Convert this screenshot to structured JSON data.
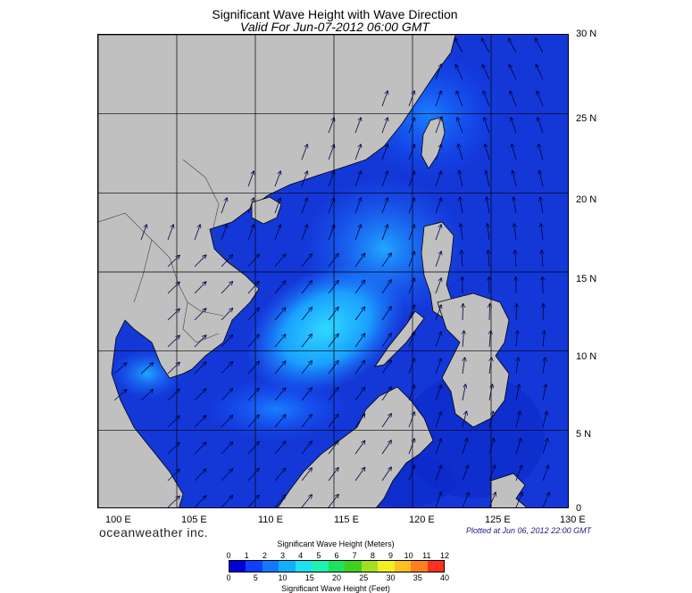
{
  "header": {
    "title": "Significant Wave Height with Wave Direction",
    "subtitle": "Valid For Jun-07-2012 06:00 GMT"
  },
  "map": {
    "lat_labels": [
      "30 N",
      "25 N",
      "20 N",
      "15 N",
      "10 N",
      "5 N",
      "0"
    ],
    "lon_labels": [
      "100 E",
      "105 E",
      "110 E",
      "115 E",
      "120 E",
      "125 E",
      "130 E"
    ],
    "land_color": "#c0c0c0",
    "sea_base_color": "#1438d8"
  },
  "footer": {
    "brand": "oceanweather inc.",
    "plotted": "Plotted at Jun 06, 2012 22:00 GMT"
  },
  "colorbar": {
    "title_meters": "Significant Wave Height (Meters)",
    "title_feet": "Significant Wave Height (Feet)",
    "meter_ticks": [
      "0",
      "1",
      "2",
      "3",
      "4",
      "5",
      "6",
      "7",
      "8",
      "9",
      "10",
      "11",
      "12"
    ],
    "feet_ticks": [
      "0",
      "5",
      "10",
      "15",
      "20",
      "25",
      "30",
      "35",
      "40"
    ],
    "colors": [
      "#0000d8",
      "#1040ff",
      "#1478ff",
      "#10b0ff",
      "#20e0f0",
      "#20f0b0",
      "#20e060",
      "#40d020",
      "#a0e020",
      "#f0f020",
      "#ffc020",
      "#ff8020",
      "#ff3020"
    ]
  }
}
